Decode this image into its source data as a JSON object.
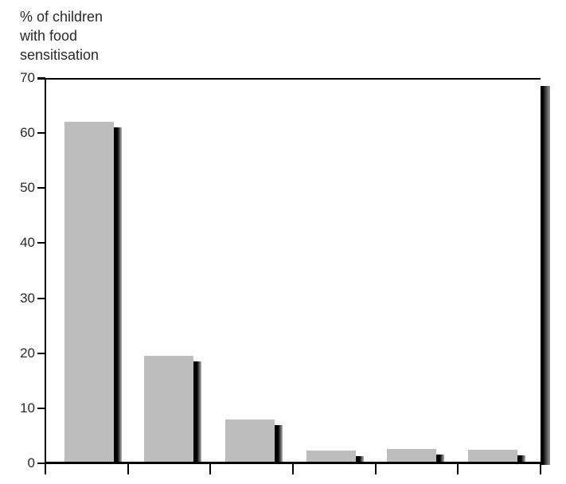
{
  "title": {
    "lines": [
      "% of children",
      "with food",
      "sensitisation"
    ]
  },
  "chart_data": {
    "type": "bar",
    "title": "% of children with food sensitisation",
    "ylabel": "% of children with food sensitisation",
    "xlabel": "",
    "categories": [
      "",
      "",
      "",
      "",
      "",
      ""
    ],
    "values": [
      62,
      19.5,
      8,
      2.3,
      2.6,
      2.5
    ],
    "ylim": [
      0,
      70
    ],
    "yticks": [
      0,
      10,
      20,
      30,
      40,
      50,
      60,
      70
    ],
    "x_axis_tick_count": 7,
    "grid": false,
    "legend": false,
    "style": "pseudo-3d bars with drop shadow and frame shadow",
    "colors": {
      "bar": "#bdbdbd",
      "shadow_dark": "#000000",
      "shadow_light": "#b8b8b8",
      "axis": "#000000",
      "text": "#2a2a2a",
      "background": "#ffffff"
    }
  }
}
